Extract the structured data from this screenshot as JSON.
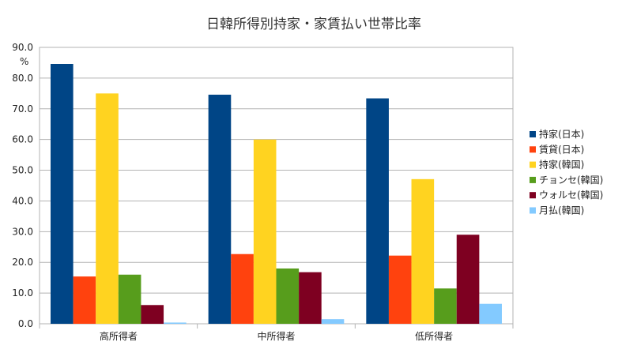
{
  "chart_data": {
    "type": "bar",
    "title": "日韓所得別持家・家賃払い世帯比率",
    "ylabel": "%",
    "ylim": [
      0,
      90
    ],
    "ytick_step": 10,
    "ytick_labels": [
      "0.0",
      "10.0",
      "20.0",
      "30.0",
      "40.0",
      "50.0",
      "60.0",
      "70.0",
      "80.0",
      "90.0"
    ],
    "grid": true,
    "legend_position": "right",
    "categories": [
      "高所得者",
      "中所得者",
      "低所得者"
    ],
    "series": [
      {
        "name": "持家(日本)",
        "color": "#004586",
        "values": [
          84.6,
          74.6,
          73.4
        ]
      },
      {
        "name": "賃貸(日本)",
        "color": "#ff420e",
        "values": [
          15.4,
          22.7,
          22.2
        ]
      },
      {
        "name": "持家(韓国)",
        "color": "#ffd320",
        "values": [
          75.0,
          60.0,
          47.1
        ]
      },
      {
        "name": "チョンセ(韓国)",
        "color": "#579d1c",
        "values": [
          16.0,
          18.0,
          11.5
        ]
      },
      {
        "name": "ウォルセ(韓国)",
        "color": "#7e0021",
        "values": [
          6.1,
          16.8,
          29.0
        ]
      },
      {
        "name": "月払(韓国)",
        "color": "#83caff",
        "values": [
          0.4,
          1.5,
          6.5
        ]
      }
    ]
  }
}
